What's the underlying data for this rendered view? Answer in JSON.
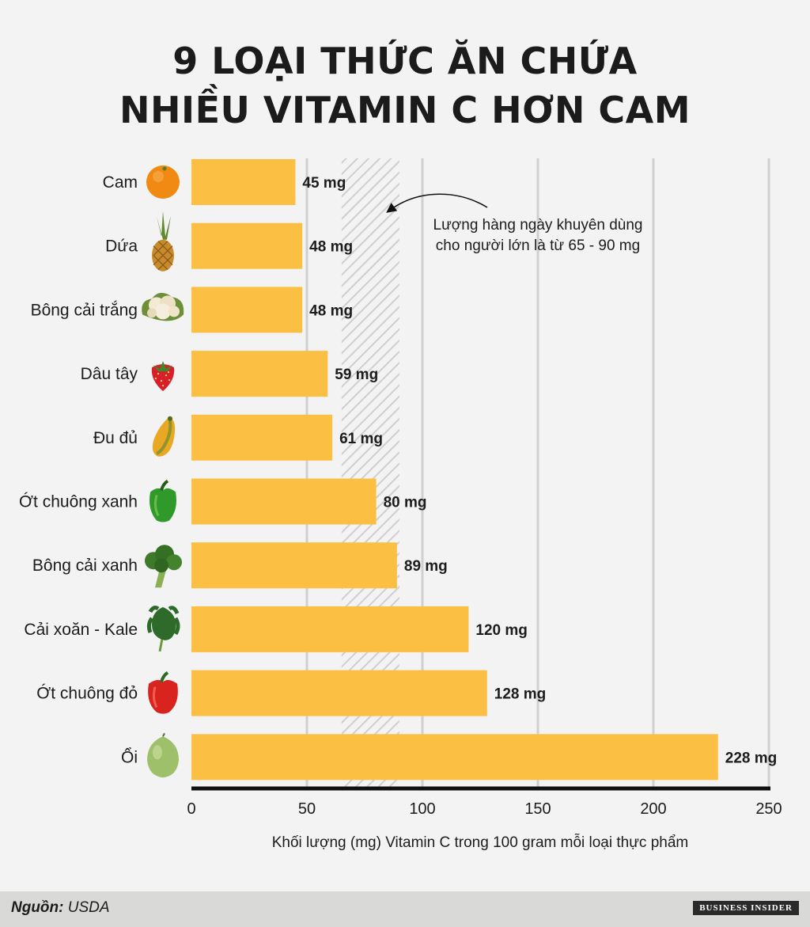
{
  "title_lines": [
    "9 LOẠI THỨC ĂN CHỨA",
    "NHIỀU VITAMIN C HƠN CAM"
  ],
  "footer": {
    "source_label": "Nguồn:",
    "source_value": "USDA",
    "brand": "BUSINESS INSIDER"
  },
  "annotation": [
    "Lượng hàng ngày khuyên dùng",
    "cho người lớn là từ 65 - 90 mg"
  ],
  "colors": {
    "bar": "#fbc043",
    "grid": "#cfcfcf",
    "axis": "#111111",
    "band_stripe": "#cfcfcf"
  },
  "chart_data": {
    "type": "bar",
    "orientation": "horizontal",
    "categories": [
      "Cam",
      "Dứa",
      "Bông cải trắng",
      "Dâu tây",
      "Đu đủ",
      "Ớt chuông xanh",
      "Bông cải xanh",
      "Cải xoăn - Kale",
      "Ớt chuông đỏ",
      "Ổi"
    ],
    "icons": [
      "orange-icon",
      "pineapple-icon",
      "cauliflower-icon",
      "strawberry-icon",
      "papaya-icon",
      "green-bell-pepper-icon",
      "broccoli-icon",
      "kale-icon",
      "red-bell-pepper-icon",
      "guava-icon"
    ],
    "values": [
      45,
      48,
      48,
      59,
      61,
      80,
      89,
      120,
      128,
      228
    ],
    "value_labels": [
      "45 mg",
      "48 mg",
      "48 mg",
      "59 mg",
      "61 mg",
      "80 mg",
      "89 mg",
      "120 mg",
      "128 mg",
      "228 mg"
    ],
    "xlim": [
      0,
      250
    ],
    "xticks": [
      0,
      50,
      100,
      150,
      200,
      250
    ],
    "xlabel": "Khối lượng (mg) Vitamin C trong 100 gram mỗi loại thực phẩm",
    "recommended_range": [
      65,
      90
    ],
    "grid": true
  }
}
